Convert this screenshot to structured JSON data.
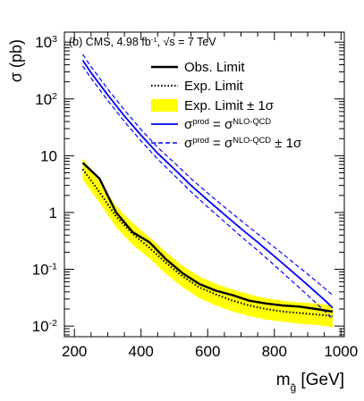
{
  "chart_data": {
    "type": "line",
    "y_scale": "log",
    "ylabel": "σ (pb)",
    "xlabel": "m",
    "xlabel_subscript": "g̃",
    "xlabel_unit": "[GeV]",
    "xlim": [
      170,
      1010
    ],
    "ylim": [
      0.0065,
      1500
    ],
    "grid": false,
    "legend_position": "top-right",
    "annotation": {
      "prefix": "(b) CMS, 4.98 fb",
      "lumi_sup": "-1",
      "sqrt": "√s",
      "suffix": " = 7 TeV"
    },
    "x_ticks": [
      200,
      400,
      600,
      800,
      1000
    ],
    "x_tick_labels": [
      "200",
      "400",
      "600",
      "800",
      "1000"
    ],
    "y_ticks": [
      {
        "value": 1000,
        "base": "10",
        "exp": "3"
      },
      {
        "value": 100,
        "base": "10",
        "exp": "2"
      },
      {
        "value": 10,
        "base": "10",
        "exp": ""
      },
      {
        "value": 1,
        "base": "1",
        "exp": ""
      },
      {
        "value": 0.1,
        "base": "10",
        "exp": "-1"
      },
      {
        "value": 0.01,
        "base": "10",
        "exp": "-2"
      }
    ],
    "legend": [
      {
        "key": "obs",
        "style": "solid-black",
        "parts": [
          {
            "t": "Obs. Limit",
            "s": ""
          }
        ]
      },
      {
        "key": "exp",
        "style": "dotted-black",
        "parts": [
          {
            "t": "Exp. Limit",
            "s": ""
          }
        ]
      },
      {
        "key": "band",
        "style": "yellow-box",
        "parts": [
          {
            "t": "Exp. Limit ± 1σ",
            "s": ""
          }
        ]
      },
      {
        "key": "theory",
        "style": "solid-blue",
        "parts": [
          {
            "t": "σ",
            "s": ""
          },
          {
            "t": "prod",
            "s": "sup"
          },
          {
            "t": " = σ",
            "s": ""
          },
          {
            "t": "NLO-QCD",
            "s": "sup"
          }
        ]
      },
      {
        "key": "theory_band",
        "style": "dashed-blue",
        "parts": [
          {
            "t": "σ",
            "s": ""
          },
          {
            "t": "prod",
            "s": "sup"
          },
          {
            "t": " = σ",
            "s": ""
          },
          {
            "t": "NLO-QCD",
            "s": "sup"
          },
          {
            "t": " ± 1σ",
            "s": ""
          }
        ]
      }
    ],
    "colors": {
      "observed": "#000000",
      "expected": "#000000",
      "band": "#ffff00",
      "theory": "#0000ff"
    },
    "series": [
      {
        "key": "obs",
        "x": [
          225,
          275,
          325,
          375,
          425,
          475,
          525,
          575,
          625,
          675,
          725,
          775,
          825,
          875,
          925,
          975
        ],
        "y": [
          7.5,
          4.0,
          1.0,
          0.45,
          0.3,
          0.15,
          0.085,
          0.055,
          0.042,
          0.035,
          0.028,
          0.025,
          0.023,
          0.022,
          0.02,
          0.018
        ]
      },
      {
        "key": "exp",
        "x": [
          225,
          275,
          325,
          375,
          425,
          475,
          525,
          575,
          625,
          675,
          725,
          775,
          825,
          875,
          925,
          975
        ],
        "y": [
          5.8,
          2.3,
          0.85,
          0.42,
          0.24,
          0.13,
          0.075,
          0.048,
          0.036,
          0.028,
          0.023,
          0.02,
          0.018,
          0.017,
          0.016,
          0.015
        ]
      },
      {
        "key": "band",
        "x": [
          225,
          275,
          325,
          375,
          425,
          475,
          525,
          575,
          625,
          675,
          725,
          775,
          825,
          875,
          925,
          975
        ],
        "y_low": [
          3.8,
          1.5,
          0.55,
          0.27,
          0.155,
          0.083,
          0.048,
          0.031,
          0.023,
          0.018,
          0.015,
          0.013,
          0.012,
          0.011,
          0.0105,
          0.0095
        ],
        "y_high": [
          9.0,
          3.5,
          1.3,
          0.65,
          0.37,
          0.2,
          0.115,
          0.075,
          0.055,
          0.044,
          0.036,
          0.031,
          0.028,
          0.026,
          0.025,
          0.023
        ]
      },
      {
        "key": "theory",
        "x": [
          225,
          250,
          300,
          350,
          400,
          450,
          500,
          550,
          600,
          650,
          700,
          750,
          800,
          850,
          900,
          950,
          975
        ],
        "y": [
          480,
          290,
          118,
          50,
          23,
          11,
          5.8,
          3.0,
          1.65,
          0.92,
          0.52,
          0.3,
          0.17,
          0.095,
          0.053,
          0.029,
          0.021
        ]
      },
      {
        "key": "theory_up",
        "x": [
          225,
          250,
          300,
          350,
          400,
          450,
          500,
          550,
          600,
          650,
          700,
          750,
          800,
          850,
          900,
          950,
          975
        ],
        "y": [
          610,
          370,
          150,
          64,
          29,
          14,
          7.5,
          3.95,
          2.2,
          1.25,
          0.72,
          0.42,
          0.245,
          0.142,
          0.082,
          0.047,
          0.035
        ]
      },
      {
        "key": "theory_down",
        "x": [
          225,
          250,
          300,
          350,
          400,
          450,
          500,
          550,
          600,
          650,
          700,
          750,
          800,
          850,
          900,
          950,
          975
        ],
        "y": [
          380,
          232,
          94,
          40,
          18.2,
          8.7,
          4.5,
          2.32,
          1.25,
          0.69,
          0.38,
          0.215,
          0.118,
          0.064,
          0.035,
          0.0185,
          0.0135
        ]
      }
    ]
  }
}
